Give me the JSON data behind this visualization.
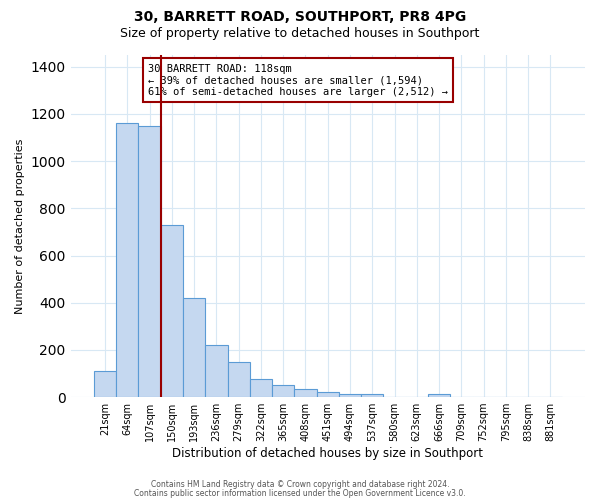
{
  "title_line1": "30, BARRETT ROAD, SOUTHPORT, PR8 4PG",
  "title_line2": "Size of property relative to detached houses in Southport",
  "xlabel": "Distribution of detached houses by size in Southport",
  "ylabel": "Number of detached properties",
  "bar_labels": [
    "21sqm",
    "64sqm",
    "107sqm",
    "150sqm",
    "193sqm",
    "236sqm",
    "279sqm",
    "322sqm",
    "365sqm",
    "408sqm",
    "451sqm",
    "494sqm",
    "537sqm",
    "580sqm",
    "623sqm",
    "666sqm",
    "709sqm",
    "752sqm",
    "795sqm",
    "838sqm",
    "881sqm"
  ],
  "bar_values": [
    110,
    1160,
    1150,
    730,
    420,
    220,
    150,
    75,
    50,
    35,
    20,
    15,
    15,
    0,
    0,
    15,
    0,
    0,
    0,
    0,
    0
  ],
  "bar_color": "#c5d8f0",
  "bar_edge_color": "#5b9bd5",
  "ylim": [
    0,
    1450
  ],
  "yticks": [
    0,
    200,
    400,
    600,
    800,
    1000,
    1200,
    1400
  ],
  "property_line_label": "107sqm",
  "property_line_color": "#990000",
  "annotation_title": "30 BARRETT ROAD: 118sqm",
  "annotation_line1": "← 39% of detached houses are smaller (1,594)",
  "annotation_line2": "61% of semi-detached houses are larger (2,512) →",
  "footer_line1": "Contains HM Land Registry data © Crown copyright and database right 2024.",
  "footer_line2": "Contains public sector information licensed under the Open Government Licence v3.0.",
  "background_color": "#ffffff",
  "grid_color": "#d8e8f4"
}
